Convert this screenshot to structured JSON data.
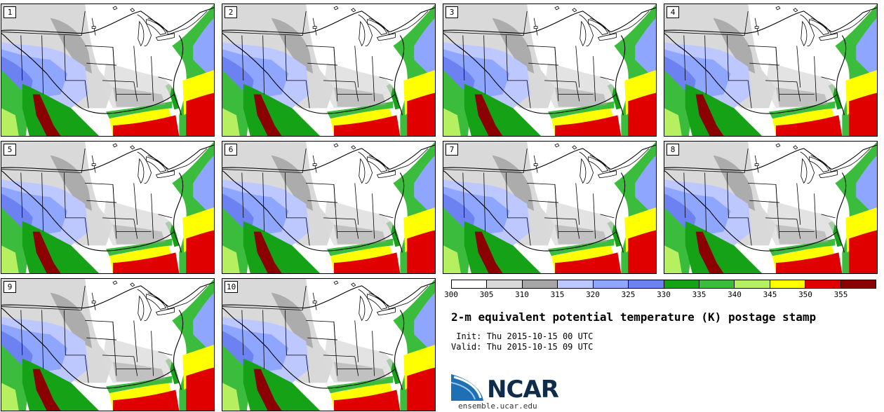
{
  "panels": [
    {
      "label": "1"
    },
    {
      "label": "2"
    },
    {
      "label": "3"
    },
    {
      "label": "4"
    },
    {
      "label": "5"
    },
    {
      "label": "6"
    },
    {
      "label": "7"
    },
    {
      "label": "8"
    },
    {
      "label": "9"
    },
    {
      "label": "10"
    }
  ],
  "colorbar": {
    "ticks": [
      "300",
      "305",
      "310",
      "315",
      "320",
      "325",
      "330",
      "335",
      "340",
      "345",
      "350",
      "355"
    ],
    "colors": [
      "#ffffff",
      "#d9d9d9",
      "#a6a6a6",
      "#bcc8ff",
      "#8fa6ff",
      "#6b82f0",
      "#16a216",
      "#3cbc3c",
      "#b6f060",
      "#ffff00",
      "#e00000",
      "#8b0000"
    ]
  },
  "title": "2-m equivalent potential temperature (K) postage stamp",
  "init": " Init: Thu 2015-10-15 00 UTC",
  "valid": "Valid: Thu 2015-10-15 09 UTC",
  "logo": {
    "text": "NCAR",
    "website": "ensemble.ucar.edu"
  }
}
